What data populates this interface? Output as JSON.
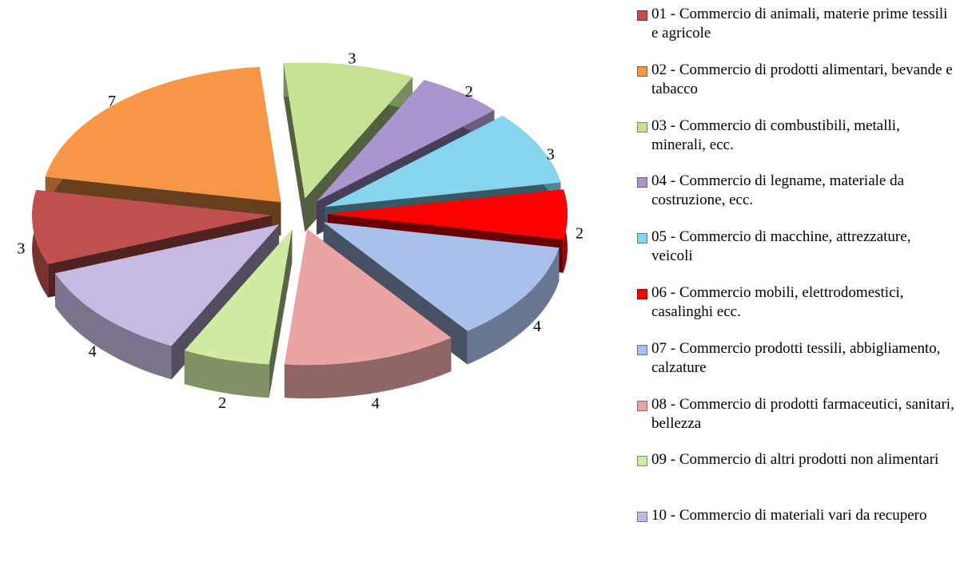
{
  "chart_data": {
    "type": "pie",
    "categories": [
      "01 - Commercio di animali, materie prime tessili e agricole",
      "02 - Commercio di prodotti alimentari, bevande e tabacco",
      "03 - Commercio di combustibili, metalli, minerali, ecc.",
      "04 - Commercio di legname, materiale da costruzione, ecc.",
      "05 - Commercio di macchine, attrezzature, veicoli",
      "06 - Commercio mobili, elettrodomestici, casalinghi ecc.",
      "07 - Commercio prodotti tessili, abbigliamento, calzature",
      "08 - Commercio di prodotti farmaceutici, sanitari, bellezza",
      "09 - Commercio di altri prodotti non alimentari",
      "10 - Commercio di materiali vari da recupero"
    ],
    "values": [
      3,
      7,
      3,
      2,
      3,
      2,
      4,
      4,
      2,
      4
    ],
    "colors": [
      "#c0504d",
      "#f79646",
      "#c6e394",
      "#a996cf",
      "#86d5ef",
      "#ff0000",
      "#a9c0eb",
      "#e9a4a3",
      "#d0eca2",
      "#c6bae2"
    ],
    "legend": "right"
  }
}
